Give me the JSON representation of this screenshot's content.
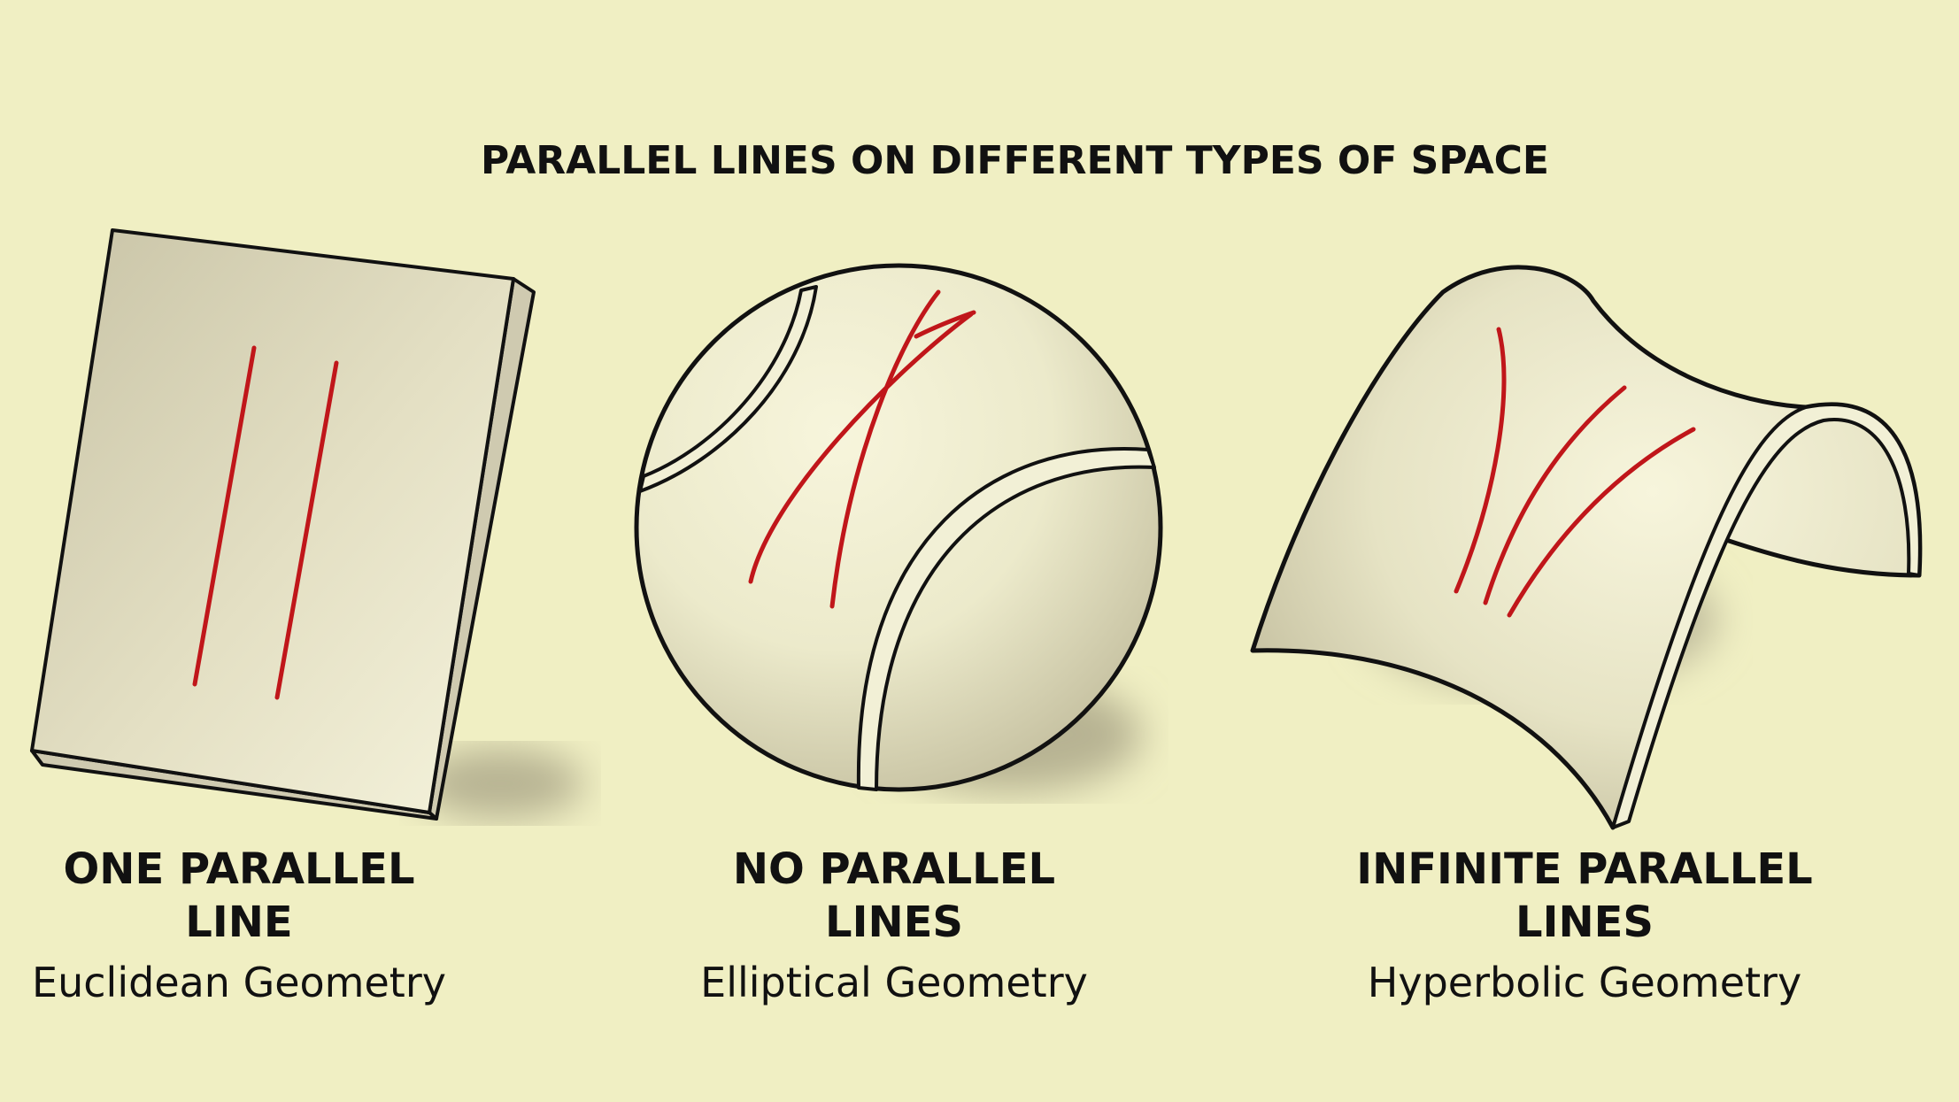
{
  "title": "PARALLEL LINES ON DIFFERENT TYPES OF SPACE",
  "panels": [
    {
      "heading": "ONE PARALLEL LINE",
      "subtitle": "Euclidean Geometry"
    },
    {
      "heading": "NO PARALLEL LINES",
      "subtitle": "Elliptical Geometry"
    },
    {
      "heading": "INFINITE PARALLEL LINES",
      "subtitle": "Hyperbolic Geometry"
    }
  ],
  "colors": {
    "background": "#f0efc3",
    "surface_light": "#f4f2d8",
    "surface_shade": "#c8c3a4",
    "outline": "#111111",
    "line": "#c0161a"
  }
}
